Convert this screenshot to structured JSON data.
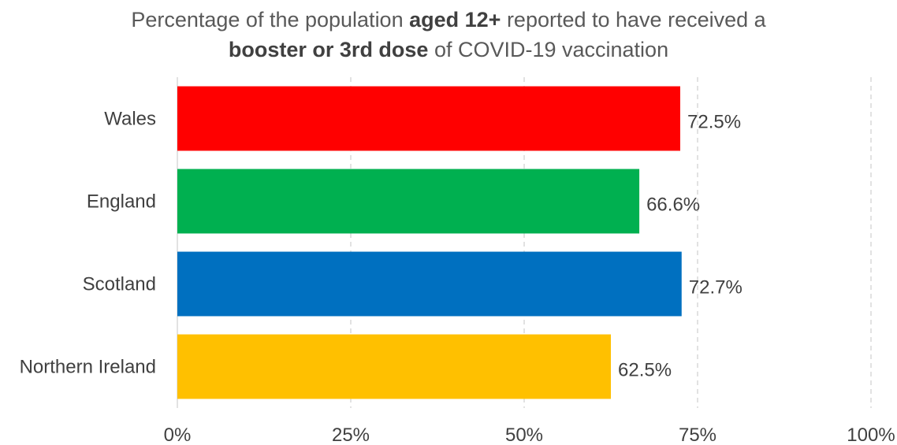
{
  "chart_data": {
    "type": "bar",
    "orientation": "horizontal",
    "title": {
      "line1": {
        "part1": "Percentage of the population ",
        "part2": "aged 12+",
        "part3": " reported to have received a"
      },
      "line2": {
        "part1": "booster or 3rd dose",
        "part2": " of COVID-19 vaccination"
      }
    },
    "categories": [
      "Wales",
      "England",
      "Scotland",
      "Northern Ireland"
    ],
    "values": [
      72.5,
      66.6,
      72.7,
      62.5
    ],
    "data_labels": [
      "72.5%",
      "66.6%",
      "72.7%",
      "62.5%"
    ],
    "colors": [
      "#ff0000",
      "#00b050",
      "#0070c0",
      "#ffc000"
    ],
    "xlim": [
      0,
      100
    ],
    "xticks": [
      0,
      25,
      50,
      75,
      100
    ],
    "xtick_labels": [
      "0%",
      "25%",
      "50%",
      "75%",
      "100%"
    ],
    "grid": "vertical-dashed",
    "legend": "none"
  }
}
